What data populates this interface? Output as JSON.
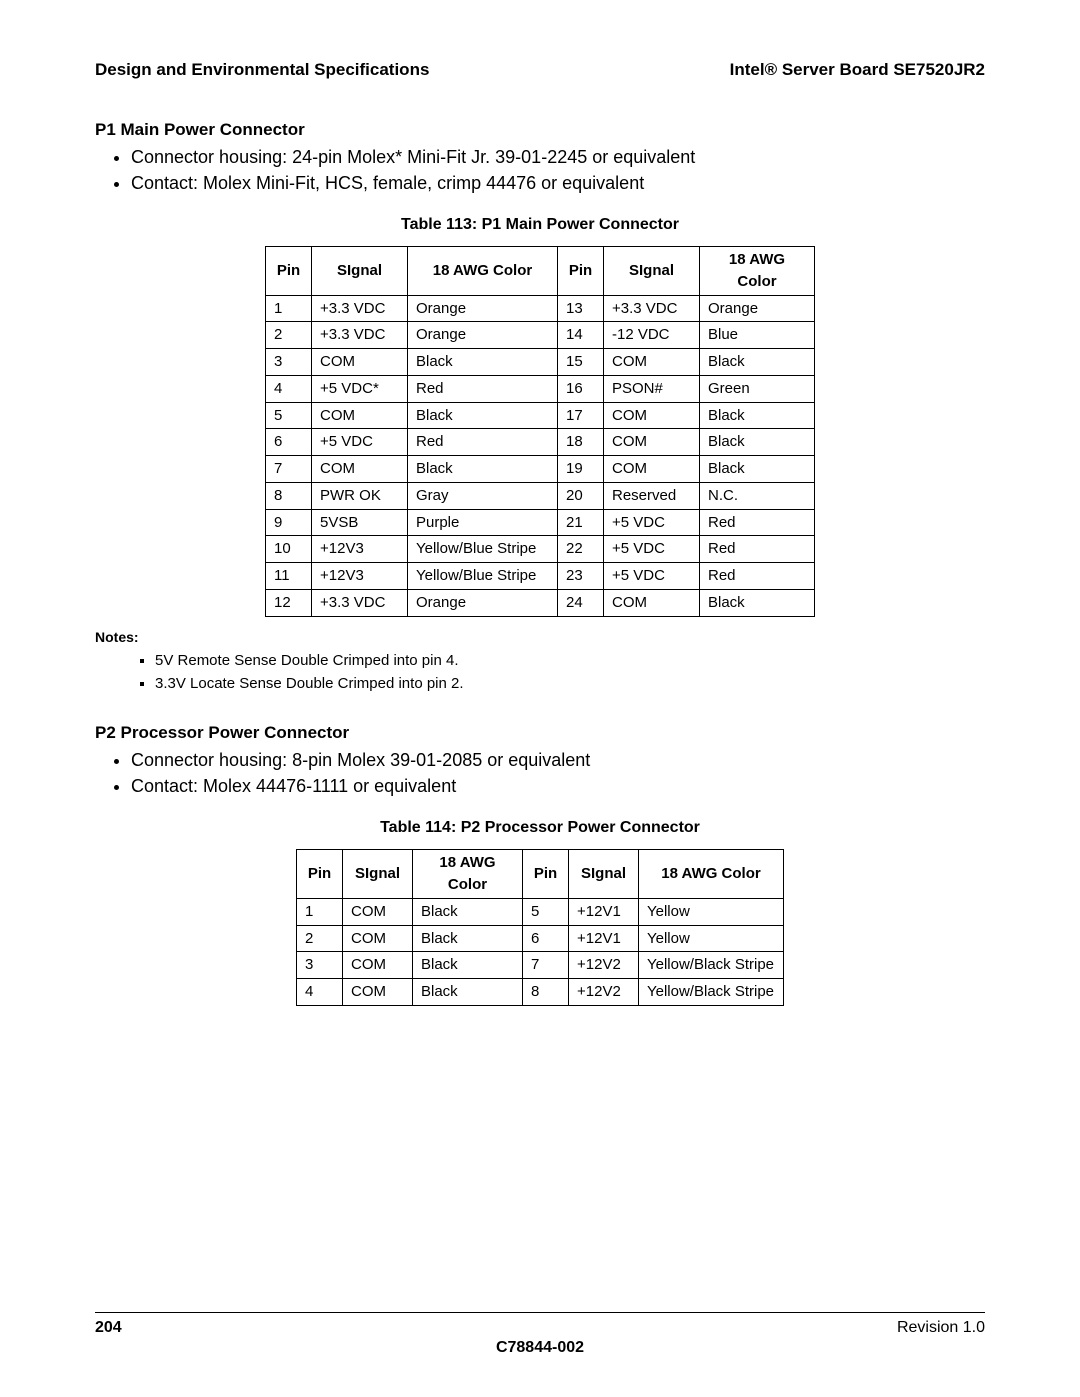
{
  "header": {
    "left": "Design and Environmental Specifications",
    "right": "Intel® Server Board SE7520JR2"
  },
  "section1": {
    "title": "P1 Main Power Connector",
    "bullets": [
      "Connector housing: 24-pin Molex* Mini-Fit Jr. 39-01-2245 or equivalent",
      "Contact: Molex Mini-Fit, HCS, female, crimp 44476 or equivalent"
    ],
    "table_caption": "Table 113: P1 Main Power Connector",
    "table": {
      "columns": [
        "Pin",
        "SIgnal",
        "18 AWG Color",
        "Pin",
        "SIgnal",
        "18 AWG Color"
      ],
      "rows": [
        [
          "1",
          "+3.3 VDC",
          "Orange",
          "13",
          "+3.3 VDC",
          "Orange"
        ],
        [
          "2",
          "+3.3 VDC",
          "Orange",
          "14",
          "-12 VDC",
          "Blue"
        ],
        [
          "3",
          "COM",
          "Black",
          "15",
          "COM",
          "Black"
        ],
        [
          "4",
          "+5 VDC*",
          "Red",
          "16",
          "PSON#",
          "Green"
        ],
        [
          "5",
          "COM",
          "Black",
          "17",
          "COM",
          "Black"
        ],
        [
          "6",
          "+5 VDC",
          "Red",
          "18",
          "COM",
          "Black"
        ],
        [
          "7",
          "COM",
          "Black",
          "19",
          "COM",
          "Black"
        ],
        [
          "8",
          "PWR OK",
          "Gray",
          "20",
          "Reserved",
          "N.C."
        ],
        [
          "9",
          "5VSB",
          "Purple",
          "21",
          "+5 VDC",
          "Red"
        ],
        [
          "10",
          "+12V3",
          "Yellow/Blue Stripe",
          "22",
          "+5 VDC",
          "Red"
        ],
        [
          "11",
          "+12V3",
          "Yellow/Blue Stripe",
          "23",
          "+5 VDC",
          "Red"
        ],
        [
          "12",
          "+3.3 VDC",
          "Orange",
          "24",
          "COM",
          "Black"
        ]
      ]
    },
    "notes_label": "Notes:",
    "notes": [
      "5V Remote Sense Double Crimped into pin 4.",
      "3.3V Locate Sense Double Crimped into pin 2."
    ]
  },
  "section2": {
    "title": "P2 Processor Power Connector",
    "bullets": [
      "Connector housing: 8-pin Molex 39-01-2085 or equivalent",
      "Contact: Molex 44476-1111 or equivalent"
    ],
    "table_caption": "Table 114: P2 Processor Power Connector",
    "table": {
      "columns": [
        "Pin",
        "SIgnal",
        "18 AWG Color",
        "Pin",
        "SIgnal",
        "18 AWG Color"
      ],
      "rows": [
        [
          "1",
          "COM",
          "Black",
          "5",
          "+12V1",
          "Yellow"
        ],
        [
          "2",
          "COM",
          "Black",
          "6",
          "+12V1",
          "Yellow"
        ],
        [
          "3",
          "COM",
          "Black",
          "7",
          "+12V2",
          "Yellow/Black Stripe"
        ],
        [
          "4",
          "COM",
          "Black",
          "8",
          "+12V2",
          "Yellow/Black Stripe"
        ]
      ]
    }
  },
  "footer": {
    "page": "204",
    "revision": "Revision 1.0",
    "docnum": "C78844-002"
  }
}
